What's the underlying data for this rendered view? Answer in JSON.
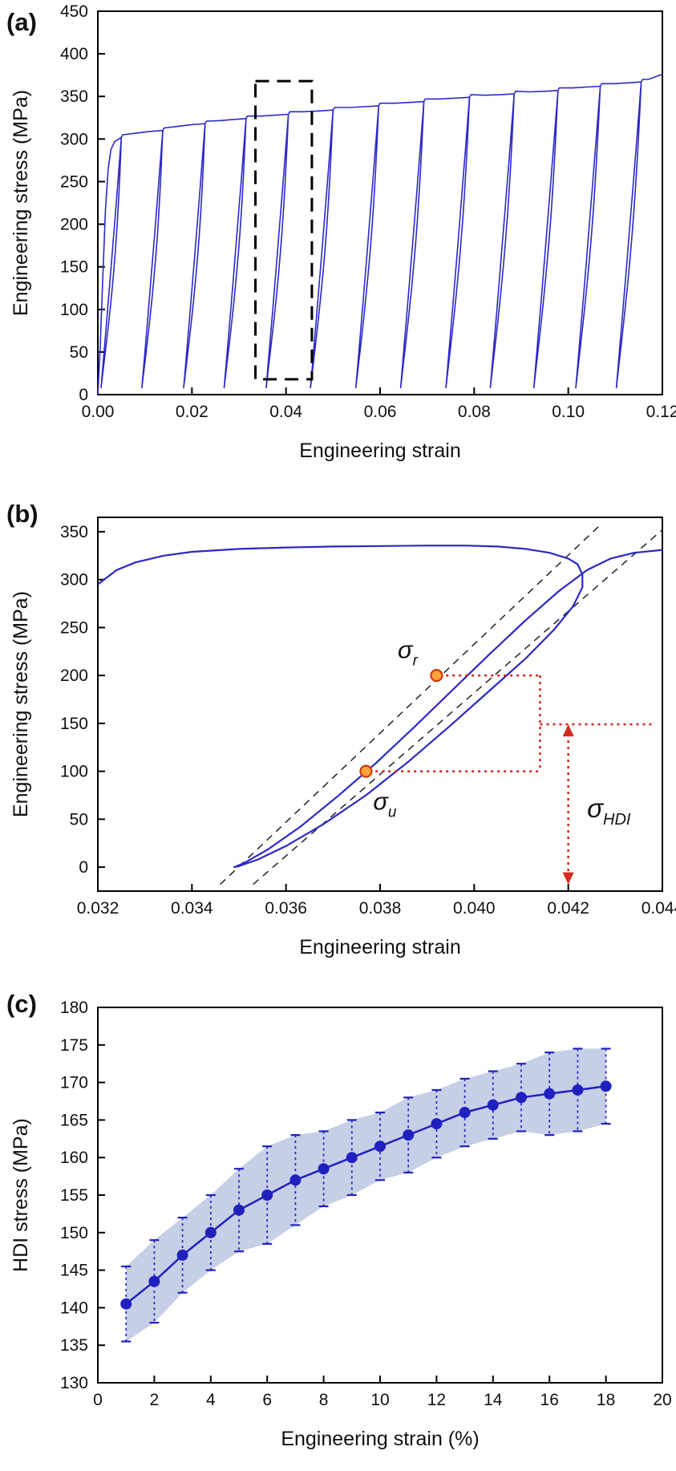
{
  "figure": {
    "bg": "#ffffff",
    "curve_color": "#2b28c8",
    "red": "#d42a1e",
    "orange_fill": "#ffa23c",
    "orange_stroke": "#cf3a10",
    "band_color": "#b7c3e0",
    "marker_color": "#2020c0",
    "axis_color": "#000000"
  },
  "chart_data": [
    {
      "id": "a",
      "type": "line",
      "title": "(a)",
      "xlabel": "Engineering strain",
      "ylabel": "Engineering stress (MPa)",
      "xlim": [
        0,
        0.12
      ],
      "ylim": [
        0,
        450
      ],
      "grid": false,
      "xtick_vals": [
        0,
        0.02,
        0.04,
        0.06,
        0.08,
        0.1,
        0.12
      ],
      "xtick_labels": [
        "0.00",
        "0.02",
        "0.04",
        "0.06",
        "0.08",
        "0.10",
        "0.12"
      ],
      "ytick_vals": [
        0,
        50,
        100,
        150,
        200,
        250,
        300,
        350,
        400,
        450
      ],
      "ytick_labels": [
        "0",
        "50",
        "100",
        "150",
        "200",
        "250",
        "300",
        "350",
        "400",
        "450"
      ],
      "series_name": "cyclic loading-unloading stress-strain curve",
      "initial_loading": [
        [
          0,
          0
        ],
        [
          0.0005,
          55
        ],
        [
          0.001,
          130
        ],
        [
          0.0016,
          215
        ],
        [
          0.0022,
          265
        ],
        [
          0.0028,
          288
        ],
        [
          0.0036,
          297
        ],
        [
          0.005,
          302
        ]
      ],
      "cycle_peaks": [
        [
          0.005,
          302
        ],
        [
          0.0138,
          310
        ],
        [
          0.0228,
          318
        ],
        [
          0.0315,
          324
        ],
        [
          0.0405,
          329
        ],
        [
          0.05,
          334
        ],
        [
          0.0597,
          339
        ],
        [
          0.0693,
          344
        ],
        [
          0.079,
          349
        ],
        [
          0.0885,
          353
        ],
        [
          0.0978,
          357
        ],
        [
          0.1068,
          362
        ],
        [
          0.1155,
          367
        ]
      ],
      "unload_modulus": 72000,
      "unload_min_stress": 8,
      "reload_bow": 0.0007,
      "final_segment": [
        [
          0.117,
          370
        ],
        [
          0.119,
          374
        ],
        [
          0.12,
          376
        ]
      ],
      "highlight_box": {
        "x": [
          0.0335,
          0.0455
        ],
        "y": [
          18,
          368
        ]
      }
    },
    {
      "id": "b",
      "type": "line",
      "title": "(b)",
      "xlabel": "Engineering strain",
      "ylabel": "Engineering stress (MPa)",
      "xlim": [
        0.032,
        0.044
      ],
      "ylim": [
        -25,
        365
      ],
      "grid": false,
      "xtick_vals": [
        0.032,
        0.034,
        0.036,
        0.038,
        0.04,
        0.042,
        0.044
      ],
      "xtick_labels": [
        "0.032",
        "0.034",
        "0.036",
        "0.038",
        "0.040",
        "0.042",
        "0.044"
      ],
      "ytick_vals": [
        0,
        50,
        100,
        150,
        200,
        250,
        300,
        350
      ],
      "ytick_labels": [
        "0",
        "50",
        "100",
        "150",
        "200",
        "250",
        "300",
        "350"
      ],
      "series_name": "single unloading-reloading hysteresis loop",
      "loop_top": [
        [
          0.032,
          295
        ],
        [
          0.0324,
          310
        ],
        [
          0.0328,
          318
        ],
        [
          0.0334,
          325
        ],
        [
          0.034,
          329
        ],
        [
          0.035,
          332
        ],
        [
          0.036,
          333.5
        ],
        [
          0.037,
          334.5
        ],
        [
          0.038,
          335
        ],
        [
          0.039,
          335.5
        ],
        [
          0.0398,
          335.5
        ],
        [
          0.0405,
          334.5
        ],
        [
          0.0411,
          332
        ],
        [
          0.0416,
          328
        ],
        [
          0.042,
          322
        ],
        [
          0.0422,
          316
        ]
      ],
      "unload_branch": [
        [
          0.0422,
          316
        ],
        [
          0.0423,
          305
        ],
        [
          0.0423,
          292
        ],
        [
          0.0421,
          272
        ],
        [
          0.0417,
          248
        ],
        [
          0.0411,
          218
        ],
        [
          0.0403,
          183
        ],
        [
          0.0395,
          148
        ],
        [
          0.0386,
          110
        ],
        [
          0.0377,
          75
        ],
        [
          0.0368,
          45
        ],
        [
          0.036,
          22
        ],
        [
          0.0354,
          8
        ],
        [
          0.035,
          1
        ],
        [
          0.0349,
          0
        ]
      ],
      "reload_branch": [
        [
          0.0349,
          0
        ],
        [
          0.0351,
          4
        ],
        [
          0.0356,
          18
        ],
        [
          0.0363,
          42
        ],
        [
          0.0371,
          74
        ],
        [
          0.0379,
          108
        ],
        [
          0.0387,
          145
        ],
        [
          0.0395,
          183
        ],
        [
          0.0403,
          221
        ],
        [
          0.0411,
          258
        ],
        [
          0.0418,
          288
        ],
        [
          0.0424,
          310
        ],
        [
          0.0429,
          322
        ],
        [
          0.0434,
          328
        ],
        [
          0.044,
          331
        ]
      ],
      "tangent_lines": [
        {
          "from": [
            0.0346,
            -18
          ],
          "to": [
            0.0427,
            358
          ]
        },
        {
          "from": [
            0.0353,
            -18
          ],
          "to": [
            0.044,
            352
          ]
        }
      ],
      "marked_points": [
        {
          "x": 0.0392,
          "y": 200,
          "name": "sigma_r"
        },
        {
          "x": 0.0377,
          "y": 100,
          "name": "sigma_u"
        }
      ],
      "labels": {
        "sigma_r": {
          "base": "σ",
          "sub": "r",
          "x": 0.0388,
          "y": 218,
          "anchor": "end",
          "size": 31
        },
        "sigma_u": {
          "base": "σ",
          "sub": "u",
          "x": 0.0381,
          "y": 60,
          "anchor": "middle",
          "size": 31
        },
        "sigma_hdi": {
          "base": "σ",
          "sub": "HDI",
          "x": 0.0424,
          "y": 52,
          "anchor": "start",
          "size": 33
        }
      },
      "annotation_lines": [
        {
          "from": [
            0.0394,
            200
          ],
          "to": [
            0.0414,
            200
          ]
        },
        {
          "from": [
            0.0379,
            100
          ],
          "to": [
            0.0414,
            100
          ]
        },
        {
          "from": [
            0.0414,
            200
          ],
          "to": [
            0.0414,
            100
          ]
        },
        {
          "from": [
            0.0414,
            149
          ],
          "to": [
            0.0438,
            149
          ]
        }
      ],
      "hdi_arrow": {
        "x": 0.042,
        "y_top": 149,
        "y_bottom": -18
      }
    },
    {
      "id": "c",
      "type": "line",
      "title": "(c)",
      "xlabel": "Engineering strain (%)",
      "ylabel": "HDI stress (MPa)",
      "xlim": [
        0,
        20
      ],
      "ylim": [
        130,
        180
      ],
      "grid": false,
      "xtick_vals": [
        0,
        2,
        4,
        6,
        8,
        10,
        12,
        14,
        16,
        18,
        20
      ],
      "xtick_labels": [
        "0",
        "2",
        "4",
        "6",
        "8",
        "10",
        "12",
        "14",
        "16",
        "18",
        "20"
      ],
      "ytick_vals": [
        130,
        135,
        140,
        145,
        150,
        155,
        160,
        165,
        170,
        175,
        180
      ],
      "ytick_labels": [
        "130",
        "135",
        "140",
        "145",
        "150",
        "155",
        "160",
        "165",
        "170",
        "175",
        "180"
      ],
      "series_name": "HDI stress vs engineering strain with error band",
      "x": [
        1,
        2,
        3,
        4,
        5,
        6,
        7,
        8,
        9,
        10,
        11,
        12,
        13,
        14,
        15,
        16,
        17,
        18
      ],
      "y": [
        140.5,
        143.5,
        147,
        150,
        153,
        155,
        157,
        158.5,
        160,
        161.5,
        163,
        164.5,
        166,
        167,
        168,
        168.5,
        169,
        169.5
      ],
      "yerr": [
        5,
        5.5,
        5,
        5,
        5.5,
        6.5,
        6,
        5,
        5,
        4.5,
        5,
        4.5,
        4.5,
        4.5,
        4.5,
        5.5,
        5.5,
        5
      ]
    }
  ]
}
